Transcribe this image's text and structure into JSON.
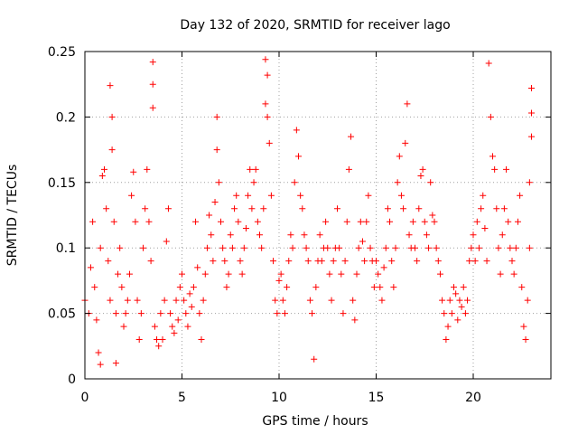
{
  "chart_data": {
    "type": "scatter",
    "title": "Day 132 of 2020, SRMTID for receiver lago",
    "xlabel": "GPS time / hours",
    "ylabel": "SRMTID / TECUs",
    "xlim": [
      0,
      24
    ],
    "ylim": [
      0,
      0.25
    ],
    "xticks": [
      0,
      5,
      10,
      15,
      20
    ],
    "xtick_labels": [
      "0",
      "5",
      "10",
      "15",
      "20"
    ],
    "yticks": [
      0,
      0.05,
      0.1,
      0.15,
      0.2,
      0.25
    ],
    "ytick_labels": [
      "0",
      "0.05",
      "0.1",
      "0.15",
      "0.2",
      "0.25"
    ],
    "grid": true,
    "marker": "+",
    "color": "#ff0000",
    "series": [
      {
        "name": "SRMTID",
        "points": [
          [
            0.0,
            0.06
          ],
          [
            0.2,
            0.05
          ],
          [
            0.3,
            0.085
          ],
          [
            0.4,
            0.12
          ],
          [
            0.5,
            0.07
          ],
          [
            0.6,
            0.045
          ],
          [
            0.7,
            0.02
          ],
          [
            0.8,
            0.011
          ],
          [
            0.8,
            0.1
          ],
          [
            0.9,
            0.155
          ],
          [
            1.0,
            0.16
          ],
          [
            1.1,
            0.13
          ],
          [
            1.2,
            0.09
          ],
          [
            1.3,
            0.06
          ],
          [
            1.3,
            0.224
          ],
          [
            1.4,
            0.2
          ],
          [
            1.4,
            0.175
          ],
          [
            1.5,
            0.12
          ],
          [
            1.6,
            0.05
          ],
          [
            1.6,
            0.012
          ],
          [
            1.7,
            0.08
          ],
          [
            1.8,
            0.1
          ],
          [
            1.9,
            0.07
          ],
          [
            2.0,
            0.04
          ],
          [
            2.1,
            0.05
          ],
          [
            2.2,
            0.06
          ],
          [
            2.3,
            0.08
          ],
          [
            2.4,
            0.14
          ],
          [
            2.5,
            0.158
          ],
          [
            2.6,
            0.12
          ],
          [
            2.7,
            0.06
          ],
          [
            2.8,
            0.03
          ],
          [
            2.9,
            0.05
          ],
          [
            3.0,
            0.1
          ],
          [
            3.1,
            0.13
          ],
          [
            3.2,
            0.16
          ],
          [
            3.3,
            0.12
          ],
          [
            3.4,
            0.09
          ],
          [
            3.5,
            0.242
          ],
          [
            3.5,
            0.225
          ],
          [
            3.5,
            0.207
          ],
          [
            3.6,
            0.04
          ],
          [
            3.7,
            0.03
          ],
          [
            3.8,
            0.025
          ],
          [
            3.9,
            0.05
          ],
          [
            4.0,
            0.03
          ],
          [
            4.1,
            0.06
          ],
          [
            4.2,
            0.105
          ],
          [
            4.3,
            0.13
          ],
          [
            4.4,
            0.05
          ],
          [
            4.5,
            0.04
          ],
          [
            4.6,
            0.035
          ],
          [
            4.7,
            0.06
          ],
          [
            4.8,
            0.045
          ],
          [
            4.9,
            0.07
          ],
          [
            5.0,
            0.08
          ],
          [
            5.1,
            0.06
          ],
          [
            5.2,
            0.05
          ],
          [
            5.3,
            0.04
          ],
          [
            5.4,
            0.065
          ],
          [
            5.5,
            0.055
          ],
          [
            5.6,
            0.07
          ],
          [
            5.7,
            0.12
          ],
          [
            5.8,
            0.085
          ],
          [
            5.9,
            0.05
          ],
          [
            6.0,
            0.03
          ],
          [
            6.1,
            0.06
          ],
          [
            6.2,
            0.08
          ],
          [
            6.3,
            0.1
          ],
          [
            6.4,
            0.125
          ],
          [
            6.5,
            0.11
          ],
          [
            6.6,
            0.09
          ],
          [
            6.7,
            0.135
          ],
          [
            6.8,
            0.2
          ],
          [
            6.8,
            0.175
          ],
          [
            6.9,
            0.15
          ],
          [
            7.0,
            0.12
          ],
          [
            7.1,
            0.1
          ],
          [
            7.2,
            0.09
          ],
          [
            7.3,
            0.07
          ],
          [
            7.4,
            0.08
          ],
          [
            7.5,
            0.11
          ],
          [
            7.6,
            0.1
          ],
          [
            7.7,
            0.13
          ],
          [
            7.8,
            0.14
          ],
          [
            7.9,
            0.12
          ],
          [
            8.0,
            0.09
          ],
          [
            8.1,
            0.08
          ],
          [
            8.2,
            0.1
          ],
          [
            8.3,
            0.115
          ],
          [
            8.4,
            0.14
          ],
          [
            8.5,
            0.16
          ],
          [
            8.6,
            0.13
          ],
          [
            8.7,
            0.15
          ],
          [
            8.8,
            0.16
          ],
          [
            8.9,
            0.12
          ],
          [
            9.0,
            0.11
          ],
          [
            9.1,
            0.1
          ],
          [
            9.2,
            0.13
          ],
          [
            9.3,
            0.21
          ],
          [
            9.3,
            0.244
          ],
          [
            9.4,
            0.232
          ],
          [
            9.4,
            0.2
          ],
          [
            9.5,
            0.18
          ],
          [
            9.6,
            0.14
          ],
          [
            9.7,
            0.09
          ],
          [
            9.8,
            0.06
          ],
          [
            9.9,
            0.05
          ],
          [
            10.0,
            0.075
          ],
          [
            10.1,
            0.08
          ],
          [
            10.2,
            0.06
          ],
          [
            10.3,
            0.05
          ],
          [
            10.4,
            0.07
          ],
          [
            10.5,
            0.09
          ],
          [
            10.6,
            0.11
          ],
          [
            10.7,
            0.1
          ],
          [
            10.8,
            0.15
          ],
          [
            10.9,
            0.19
          ],
          [
            11.0,
            0.17
          ],
          [
            11.1,
            0.14
          ],
          [
            11.2,
            0.13
          ],
          [
            11.3,
            0.11
          ],
          [
            11.4,
            0.1
          ],
          [
            11.5,
            0.09
          ],
          [
            11.6,
            0.06
          ],
          [
            11.7,
            0.05
          ],
          [
            11.8,
            0.015
          ],
          [
            11.9,
            0.07
          ],
          [
            12.0,
            0.09
          ],
          [
            12.1,
            0.11
          ],
          [
            12.2,
            0.09
          ],
          [
            12.3,
            0.1
          ],
          [
            12.4,
            0.12
          ],
          [
            12.5,
            0.1
          ],
          [
            12.6,
            0.08
          ],
          [
            12.7,
            0.06
          ],
          [
            12.8,
            0.09
          ],
          [
            12.9,
            0.1
          ],
          [
            13.0,
            0.13
          ],
          [
            13.1,
            0.1
          ],
          [
            13.2,
            0.08
          ],
          [
            13.3,
            0.05
          ],
          [
            13.4,
            0.09
          ],
          [
            13.5,
            0.12
          ],
          [
            13.6,
            0.16
          ],
          [
            13.7,
            0.185
          ],
          [
            13.8,
            0.06
          ],
          [
            13.9,
            0.045
          ],
          [
            14.0,
            0.08
          ],
          [
            14.1,
            0.1
          ],
          [
            14.2,
            0.12
          ],
          [
            14.3,
            0.105
          ],
          [
            14.4,
            0.09
          ],
          [
            14.5,
            0.12
          ],
          [
            14.6,
            0.14
          ],
          [
            14.7,
            0.1
          ],
          [
            14.8,
            0.09
          ],
          [
            14.9,
            0.07
          ],
          [
            15.0,
            0.09
          ],
          [
            15.1,
            0.08
          ],
          [
            15.2,
            0.07
          ],
          [
            15.3,
            0.06
          ],
          [
            15.4,
            0.085
          ],
          [
            15.5,
            0.1
          ],
          [
            15.6,
            0.13
          ],
          [
            15.7,
            0.12
          ],
          [
            15.8,
            0.09
          ],
          [
            15.9,
            0.07
          ],
          [
            16.0,
            0.1
          ],
          [
            16.1,
            0.15
          ],
          [
            16.2,
            0.17
          ],
          [
            16.3,
            0.14
          ],
          [
            16.4,
            0.13
          ],
          [
            16.5,
            0.18
          ],
          [
            16.6,
            0.21
          ],
          [
            16.7,
            0.11
          ],
          [
            16.8,
            0.1
          ],
          [
            16.9,
            0.12
          ],
          [
            17.0,
            0.1
          ],
          [
            17.1,
            0.09
          ],
          [
            17.2,
            0.13
          ],
          [
            17.3,
            0.155
          ],
          [
            17.4,
            0.16
          ],
          [
            17.5,
            0.12
          ],
          [
            17.6,
            0.11
          ],
          [
            17.7,
            0.1
          ],
          [
            17.8,
            0.15
          ],
          [
            17.9,
            0.125
          ],
          [
            18.0,
            0.12
          ],
          [
            18.1,
            0.1
          ],
          [
            18.2,
            0.09
          ],
          [
            18.3,
            0.08
          ],
          [
            18.4,
            0.06
          ],
          [
            18.5,
            0.05
          ],
          [
            18.6,
            0.03
          ],
          [
            18.7,
            0.04
          ],
          [
            18.8,
            0.06
          ],
          [
            18.9,
            0.05
          ],
          [
            19.0,
            0.07
          ],
          [
            19.1,
            0.065
          ],
          [
            19.2,
            0.045
          ],
          [
            19.3,
            0.06
          ],
          [
            19.4,
            0.055
          ],
          [
            19.5,
            0.07
          ],
          [
            19.6,
            0.05
          ],
          [
            19.7,
            0.06
          ],
          [
            19.8,
            0.09
          ],
          [
            19.9,
            0.1
          ],
          [
            20.0,
            0.11
          ],
          [
            20.1,
            0.09
          ],
          [
            20.2,
            0.12
          ],
          [
            20.3,
            0.1
          ],
          [
            20.4,
            0.13
          ],
          [
            20.5,
            0.14
          ],
          [
            20.6,
            0.115
          ],
          [
            20.7,
            0.09
          ],
          [
            20.8,
            0.241
          ],
          [
            20.9,
            0.2
          ],
          [
            21.0,
            0.17
          ],
          [
            21.1,
            0.16
          ],
          [
            21.2,
            0.13
          ],
          [
            21.3,
            0.1
          ],
          [
            21.4,
            0.08
          ],
          [
            21.5,
            0.11
          ],
          [
            21.6,
            0.13
          ],
          [
            21.7,
            0.16
          ],
          [
            21.8,
            0.12
          ],
          [
            21.9,
            0.1
          ],
          [
            22.0,
            0.09
          ],
          [
            22.1,
            0.08
          ],
          [
            22.2,
            0.1
          ],
          [
            22.3,
            0.12
          ],
          [
            22.4,
            0.14
          ],
          [
            22.5,
            0.07
          ],
          [
            22.6,
            0.04
          ],
          [
            22.7,
            0.03
          ],
          [
            22.8,
            0.06
          ],
          [
            22.9,
            0.1
          ],
          [
            22.9,
            0.15
          ],
          [
            23.0,
            0.222
          ],
          [
            23.0,
            0.203
          ],
          [
            23.0,
            0.185
          ]
        ]
      }
    ]
  }
}
